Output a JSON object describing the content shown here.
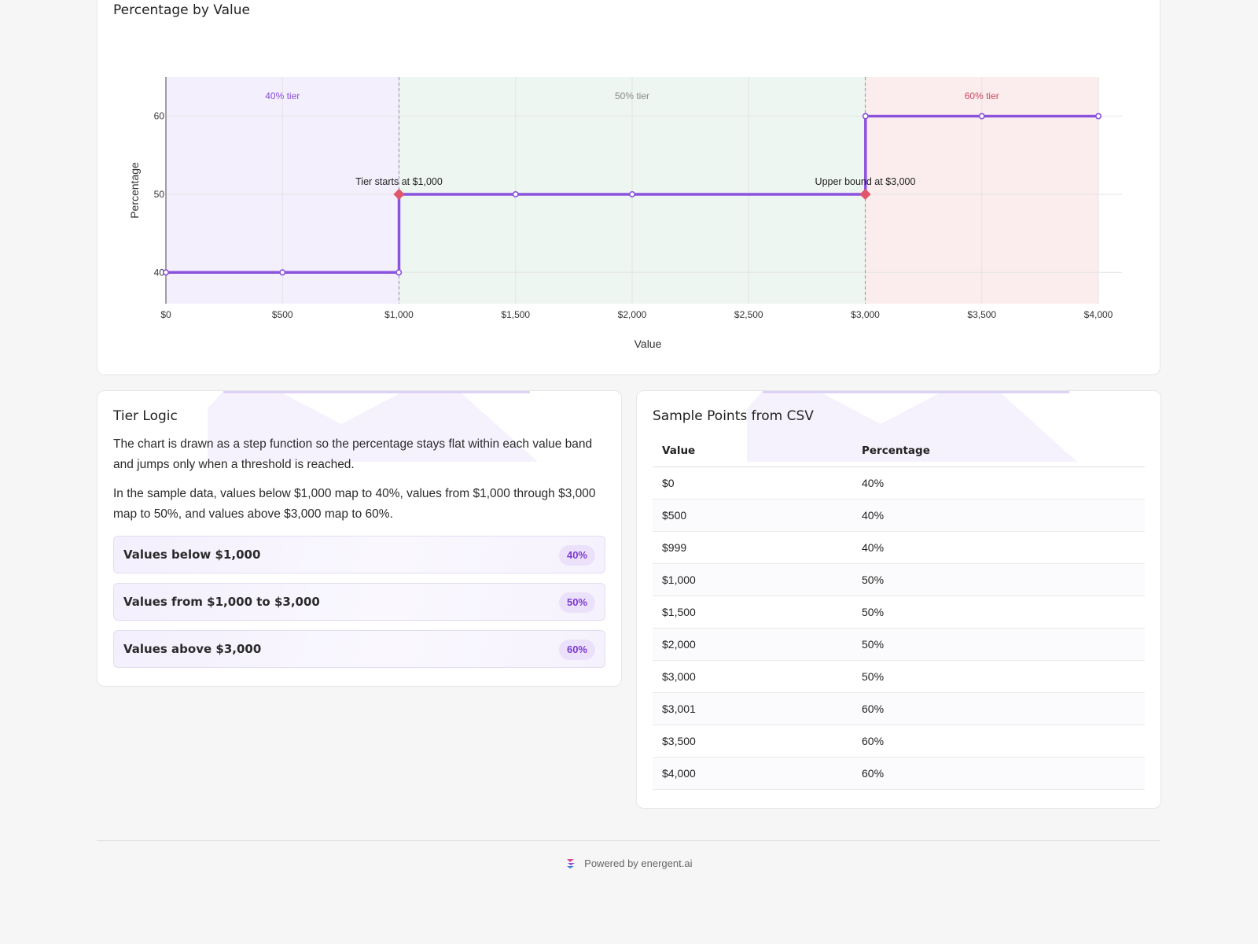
{
  "chart_card": {
    "title": "Percentage by Value"
  },
  "chart_data": {
    "type": "line",
    "title": "Percentage by Value",
    "xlabel": "Value",
    "ylabel": "Percentage",
    "line_shape": "step",
    "xlim": [
      0,
      4000
    ],
    "ylim": [
      36,
      65
    ],
    "x_ticks": [
      "$0",
      "$500",
      "$1,000",
      "$1,500",
      "$2,000",
      "$2,500",
      "$3,000",
      "$3,500",
      "$4,000"
    ],
    "x_tick_values": [
      0,
      500,
      1000,
      1500,
      2000,
      2500,
      3000,
      3500,
      4000
    ],
    "y_ticks": [
      "40",
      "50",
      "60"
    ],
    "y_tick_values": [
      40,
      50,
      60
    ],
    "grid": true,
    "series": [
      {
        "x": [
          0,
          500,
          999,
          1000,
          1500,
          2000,
          3000,
          3001,
          3500,
          4000
        ],
        "y": [
          40,
          40,
          40,
          50,
          50,
          50,
          50,
          60,
          60,
          60
        ],
        "color": "#8b52dd"
      }
    ],
    "bands": [
      {
        "label": "40% tier",
        "from": 0,
        "to": 1000,
        "color": "#f3effd",
        "label_color": "#8a4fd8"
      },
      {
        "label": "50% tier",
        "from": 1000,
        "to": 3000,
        "color": "#edf6f1",
        "label_color": "#8a8a8a"
      },
      {
        "label": "60% tier",
        "from": 3000,
        "to": 4000,
        "color": "#fbeded",
        "label_color": "#c94a5f"
      }
    ],
    "thresholds": [
      1000,
      3000
    ],
    "annotations": [
      {
        "text": "Tier starts at $1,000",
        "x": 1000,
        "y": 50,
        "marker_color": "#e0566b"
      },
      {
        "text": "Upper bound at $3,000",
        "x": 3000,
        "y": 50,
        "marker_color": "#e0566b"
      }
    ]
  },
  "tier_logic": {
    "title": "Tier Logic",
    "paragraph_1": "The chart is drawn as a step function so the percentage stays flat within each value band and jumps only when a threshold is reached.",
    "paragraph_2": "In the sample data, values below $1,000 map to 40%, values from $1,000 through $3,000 map to 50%, and values above $3,000 map to 60%.",
    "tiers": [
      {
        "label": "Values below $1,000",
        "badge": "40%"
      },
      {
        "label": "Values from $1,000 to $3,000",
        "badge": "50%"
      },
      {
        "label": "Values above $3,000",
        "badge": "60%"
      }
    ]
  },
  "sample_points": {
    "title": "Sample Points from CSV",
    "columns": [
      "Value",
      "Percentage"
    ],
    "rows": [
      [
        "$0",
        "40%"
      ],
      [
        "$500",
        "40%"
      ],
      [
        "$999",
        "40%"
      ],
      [
        "$1,000",
        "50%"
      ],
      [
        "$1,500",
        "50%"
      ],
      [
        "$2,000",
        "50%"
      ],
      [
        "$3,000",
        "50%"
      ],
      [
        "$3,001",
        "60%"
      ],
      [
        "$3,500",
        "60%"
      ],
      [
        "$4,000",
        "60%"
      ]
    ]
  },
  "footer": {
    "text": "Powered by energent.ai",
    "logo_icon": "energent-logo-icon"
  }
}
